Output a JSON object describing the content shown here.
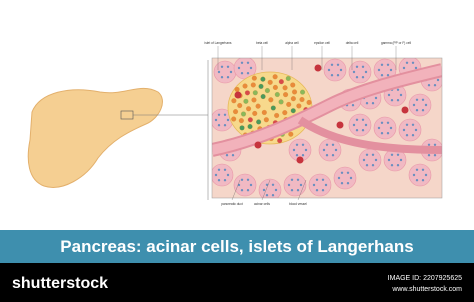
{
  "labels": {
    "top": [
      "islet of Langerhans",
      "beta cell",
      "alpha cell",
      "epsilon cell",
      "delta cell",
      "gamma (PP or F) cell"
    ],
    "bottom": [
      "pancreatic duct",
      "acinar cells",
      "blood vessel"
    ]
  },
  "title": "Pancreas: acinar cells, islets of Langerhans",
  "footer": {
    "brand": "shutterstock",
    "image_id": "IMAGE ID: 2207925625",
    "url": "www.shutterstock.com"
  }
}
